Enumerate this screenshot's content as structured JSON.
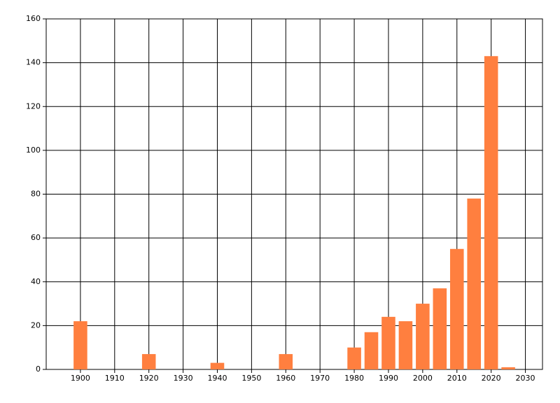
{
  "chart_data": {
    "type": "bar",
    "x": [
      1900,
      1920,
      1940,
      1960,
      1980,
      1985,
      1990,
      1995,
      2000,
      2005,
      2010,
      2015,
      2020,
      2025
    ],
    "values": [
      22,
      7,
      3,
      7,
      10,
      17,
      24,
      22,
      30,
      37,
      55,
      78,
      143,
      1
    ],
    "color": "#ff7f3f",
    "xlim": [
      1890,
      2035
    ],
    "xticks": [
      1900,
      1910,
      1920,
      1930,
      1940,
      1950,
      1960,
      1970,
      1980,
      1990,
      2000,
      2010,
      2020,
      2030
    ],
    "ylim": [
      0,
      160
    ],
    "yticks": [
      0,
      20,
      40,
      60,
      80,
      100,
      120,
      140,
      160
    ],
    "grid": true
  }
}
